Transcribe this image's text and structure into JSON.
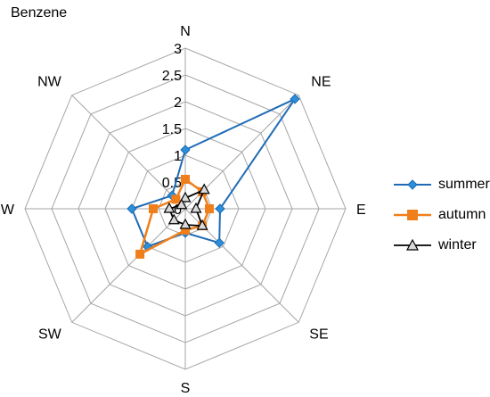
{
  "chart_data": {
    "type": "radar",
    "title": "Benzene",
    "categories": [
      "N",
      "NE",
      "E",
      "SE",
      "S",
      "SW",
      "W",
      "NW"
    ],
    "radial_ticks": [
      "3",
      "2.5",
      "2",
      "1.5",
      "1",
      "0.5",
      "0"
    ],
    "rlim": [
      0,
      3
    ],
    "grid": true,
    "legend_position": "right",
    "series": [
      {
        "name": "summer",
        "color": "#1f6bb5",
        "marker": "diamond",
        "values": [
          1.1,
          2.9,
          0.65,
          0.9,
          0.45,
          1.0,
          1.0,
          0.35
        ]
      },
      {
        "name": "autumn",
        "color": "#f07f1b",
        "marker": "square",
        "values": [
          0.55,
          0.45,
          0.45,
          0.45,
          0.4,
          1.2,
          0.6,
          0.25
        ]
      },
      {
        "name": "winter",
        "color": "#000000",
        "marker": "triangle",
        "values": [
          0.2,
          0.5,
          0.2,
          0.45,
          0.3,
          0.3,
          0.3,
          0.1
        ]
      }
    ]
  }
}
